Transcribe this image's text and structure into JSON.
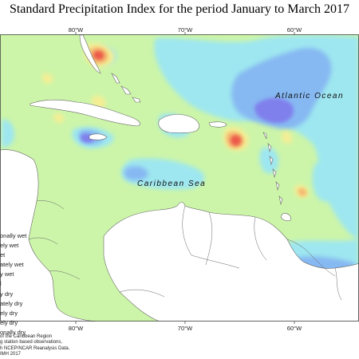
{
  "title": "Standard Precipitation Index for the period January to March 2017",
  "labels": {
    "caribbean_sea": "Caribbean Sea",
    "atlantic_ocean": "Atlantic Ocean"
  },
  "axis": {
    "top_ticks": [
      "80°W",
      "70°W",
      "60°W"
    ],
    "bottom_ticks": [
      "80°W",
      "70°W",
      "60°W"
    ]
  },
  "legend": [
    "onally wet",
    "ely wet",
    "et",
    "ately wet",
    "y wet",
    "l",
    "y dry",
    "ately dry",
    "ely dry",
    "ely dry",
    "onally dry"
  ],
  "notes": [
    "of the Caribbean Region",
    "g station based observations,",
    "h NCEP/NCAR Reanalysis Data.",
    "IMH 2017"
  ],
  "colors": {
    "normal": "#ccf5a9",
    "wet_light": "#9ee7f0",
    "wet_mid": "#86b8f2",
    "wet_strong": "#8080ec",
    "dry_light": "#f4ee94",
    "dry_mid": "#f4bb72",
    "dry_strong": "#ec5a4a",
    "land": "#ffffff",
    "outline": "#666666"
  }
}
